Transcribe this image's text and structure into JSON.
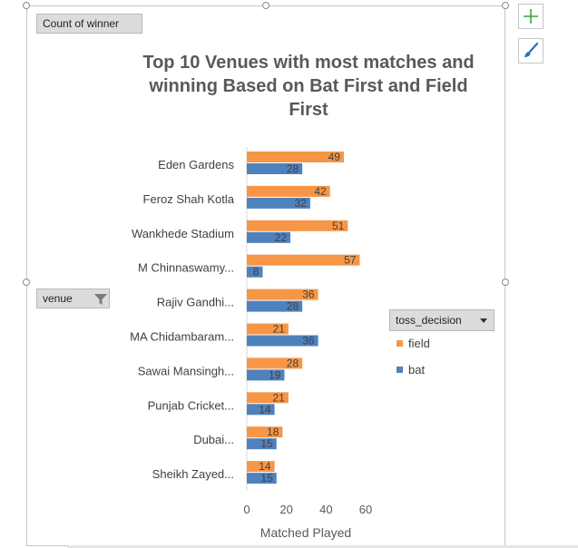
{
  "field_buttons": {
    "values_label": "Count of winner",
    "axis_label": "venue",
    "legend_label": "toss_decision"
  },
  "colors": {
    "field": "#f79646",
    "bat": "#4f81bd",
    "text": "#404040"
  },
  "icons": {
    "add": "plus-icon",
    "style": "paintbrush-icon",
    "filter": "filter-icon",
    "dropdown": "chevron-down-icon"
  },
  "chart_data": {
    "type": "bar",
    "orientation": "horizontal",
    "title": "Top 10 Venues with most matches and winning  Based on Bat First and Field First",
    "title_lines": [
      "Top 10 Venues with most matches and",
      "winning  Based on Bat First and Field",
      "First"
    ],
    "xlabel": "Matched Played",
    "ylabel": "",
    "xlim": [
      0,
      60
    ],
    "xticks": [
      "0",
      "20",
      "40",
      "60"
    ],
    "grid": false,
    "legend_position": "right",
    "categories": [
      "Eden Gardens",
      "Feroz Shah Kotla",
      "Wankhede Stadium",
      "M Chinnaswamy...",
      "Rajiv Gandhi...",
      "MA Chidambaram...",
      "Sawai Mansingh...",
      "Punjab Cricket...",
      "Dubai...",
      "Sheikh Zayed..."
    ],
    "series": [
      {
        "name": "field",
        "values": [
          49,
          42,
          51,
          57,
          36,
          21,
          28,
          21,
          18,
          14
        ]
      },
      {
        "name": "bat",
        "values": [
          28,
          32,
          22,
          8,
          28,
          36,
          19,
          14,
          15,
          15
        ]
      }
    ]
  }
}
